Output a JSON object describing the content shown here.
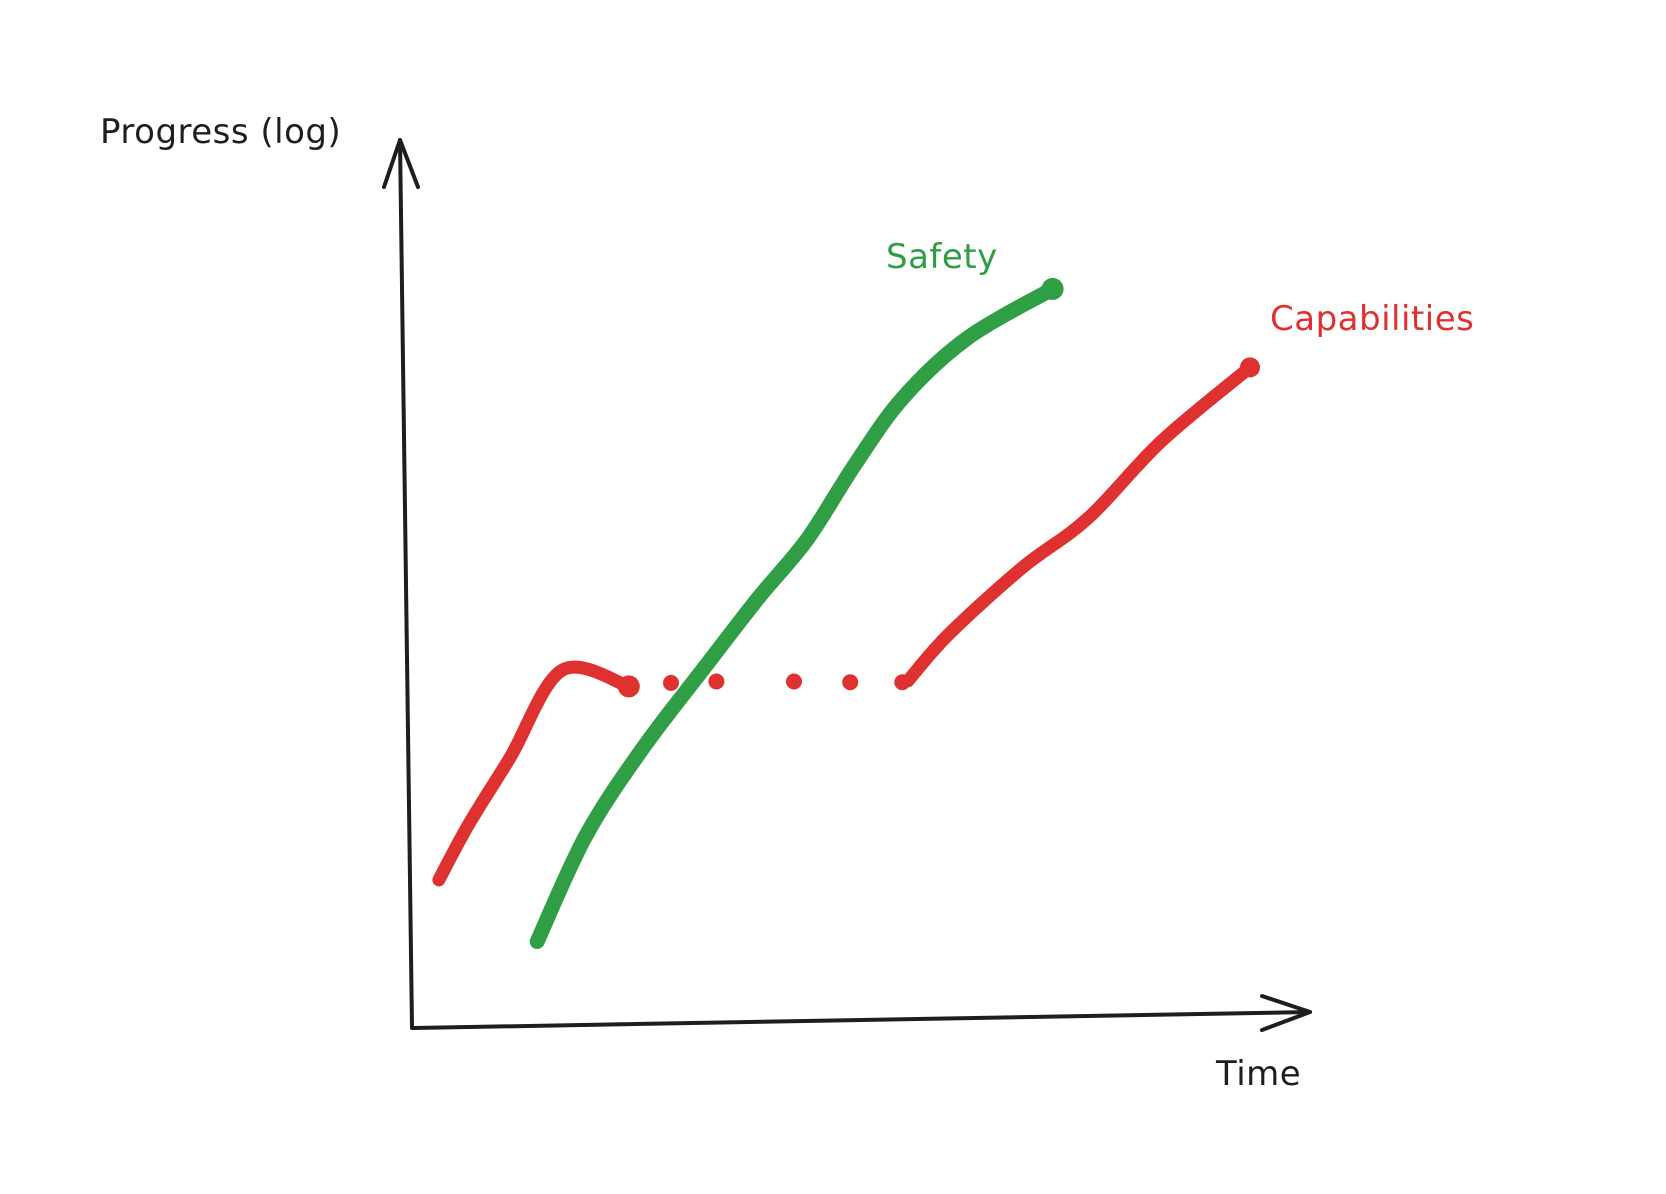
{
  "chart_data": {
    "type": "line",
    "title": "",
    "xlabel": "Time",
    "ylabel": "Progress (log)",
    "xlim": [
      0,
      100
    ],
    "ylim": [
      0,
      100
    ],
    "yscale": "log",
    "grid": false,
    "legend": "none",
    "series": [
      {
        "name": "Safety",
        "color": "#2f9e44",
        "segments": [
          {
            "style": "solid",
            "points": [
              [
                13.7,
                6.2
              ],
              [
                19.6,
                21.3
              ],
              [
                26.5,
                33.8
              ],
              [
                33.9,
                45.2
              ],
              [
                40.4,
                55.1
              ],
              [
                46.4,
                63.6
              ],
              [
                52.2,
                74.3
              ],
              [
                58.0,
                83.8
              ],
              [
                65.8,
                92.3
              ],
              [
                76.1,
                99.3
              ]
            ]
          }
        ]
      },
      {
        "name": "Capabilities",
        "color": "#e03131",
        "segments": [
          {
            "style": "solid",
            "points": [
              [
                1.8,
                15.0
              ],
              [
                5.4,
                22.9
              ],
              [
                10.4,
                32.4
              ],
              [
                16.7,
                44.9
              ],
              [
                24.8,
                42.6
              ]
            ]
          },
          {
            "style": "dotted",
            "points": [
              [
                29.9,
                43.1
              ],
              [
                35.4,
                43.3
              ],
              [
                44.8,
                43.3
              ],
              [
                51.6,
                43.2
              ],
              [
                57.9,
                43.2
              ]
            ]
          },
          {
            "style": "solid",
            "points": [
              [
                58.6,
                43.4
              ],
              [
                63.5,
                50.0
              ],
              [
                72.4,
                59.5
              ],
              [
                80.4,
                66.6
              ],
              [
                89.3,
                77.6
              ],
              [
                100.0,
                88.1
              ]
            ]
          }
        ]
      }
    ]
  }
}
